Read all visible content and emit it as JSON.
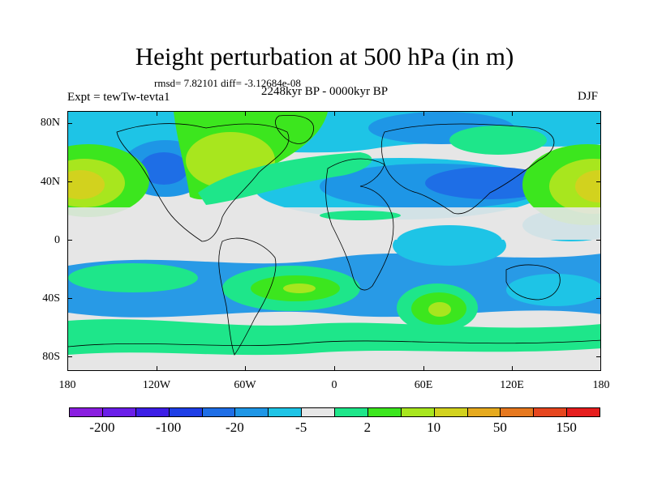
{
  "title": "Height perturbation at 500 hPa (in m)",
  "stats": "rmsd= 7.82101 diff= -3.12684e-08",
  "period": "2248kyr BP - 0000kyr BP",
  "experiment": "Expt = tewTw-tevta1",
  "season": "DJF",
  "lat_labels": [
    "80N",
    "40N",
    "0",
    "40S",
    "80S"
  ],
  "lon_labels": [
    "180",
    "120W",
    "60W",
    "0",
    "60E",
    "120E",
    "180"
  ],
  "colorbar": {
    "colors": [
      "#8a1ee0",
      "#6a1ee8",
      "#3c1ee6",
      "#1e3ee6",
      "#1e6ee6",
      "#1e96e6",
      "#1ec4e6",
      "#e6e6e6",
      "#1ee68a",
      "#3ce61e",
      "#a8e61e",
      "#d2d21e",
      "#e6aa1e",
      "#e6781e",
      "#e6461e",
      "#e61e1e"
    ],
    "labels": [
      "-200",
      "-100",
      "-20",
      "-5",
      "2",
      "10",
      "50",
      "150"
    ]
  }
}
